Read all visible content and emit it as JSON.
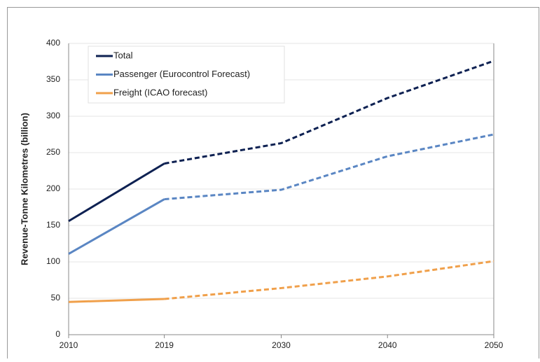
{
  "chart_data": {
    "type": "line",
    "y_label": "Revenue-Tonne Kilometres (billion)",
    "x": [
      2010,
      2019,
      2030,
      2040,
      2050
    ],
    "xlim": [
      2010,
      2050
    ],
    "xticks": [
      2010,
      2019,
      2030,
      2040,
      2050
    ],
    "ylim": [
      0,
      400
    ],
    "yticks": [
      0,
      50,
      100,
      150,
      200,
      250,
      300,
      350,
      400
    ],
    "grid": true,
    "legend": "top-left",
    "dashed_from_x": 2019,
    "series": [
      {
        "name": "Total",
        "color": "#0e2152",
        "values": [
          156,
          235,
          263,
          325,
          376
        ]
      },
      {
        "name": "Passenger (Eurocontrol Forecast)",
        "color": "#5a86c3",
        "values": [
          111,
          186,
          199,
          245,
          275
        ]
      },
      {
        "name": "Freight (ICAO forecast)",
        "color": "#f0a04b",
        "values": [
          45,
          49,
          64,
          80,
          101
        ]
      }
    ]
  }
}
